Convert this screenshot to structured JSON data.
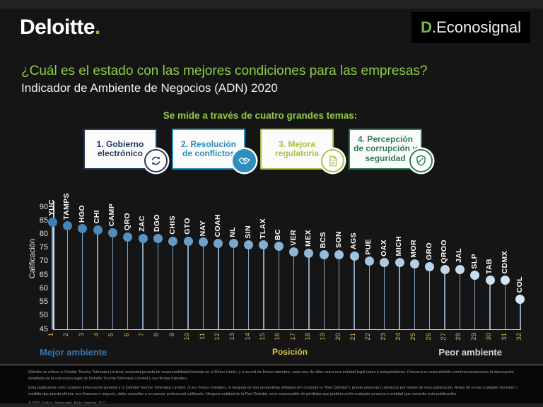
{
  "header": {
    "brand": "Deloitte",
    "brand_dot": ".",
    "brand_dot_color": "#86bc25",
    "logo_right_d": "D",
    "logo_right_rest": ".Econosignal"
  },
  "title": "¿Cuál es el estado con las mejores condiciones para las empresas?",
  "subtitle": "Indicador de Ambiente de Negocios (ADN) 2020",
  "themes_intro": "Se mide a través de cuatro grandes temas:",
  "themes": [
    {
      "label": "1. Gobierno electrónico",
      "color": "#223a5e",
      "icon": "sync-arrows-icon",
      "icon_filled": false
    },
    {
      "label": "2. Resolución de conflictos",
      "color": "#2e8fbf",
      "icon": "handshake-icon",
      "icon_filled": true
    },
    {
      "label": "3. Mejora regulatoria",
      "color": "#a8c24b",
      "icon": "document-icon",
      "icon_filled": false
    },
    {
      "label": "4. Percepción de corrupción y seguridad",
      "color": "#2e7d4f",
      "icon": "shield-icon",
      "icon_filled": false
    }
  ],
  "chart_data": {
    "type": "scatter",
    "subtype": "lollipop",
    "xlabel": "Posición",
    "ylabel": "Calificación",
    "ylim": [
      45,
      90
    ],
    "ytick_step": 5,
    "xlim": [
      1,
      32
    ],
    "grid": false,
    "x": [
      1,
      2,
      3,
      4,
      5,
      6,
      7,
      8,
      9,
      10,
      11,
      12,
      13,
      14,
      15,
      16,
      17,
      18,
      19,
      20,
      21,
      22,
      23,
      24,
      25,
      26,
      27,
      28,
      29,
      30,
      31,
      32
    ],
    "categories": [
      "YUC",
      "TAMPS",
      "HGO",
      "CHI",
      "CAMP",
      "QRO",
      "ZAC",
      "DGO",
      "CHIS",
      "GTO",
      "NAY",
      "COAH",
      "NL",
      "SIN",
      "TLAX",
      "BC",
      "VER",
      "MEX",
      "BCS",
      "SON",
      "AGS",
      "PUE",
      "OAX",
      "MICH",
      "MOR",
      "GRO",
      "QROO",
      "JAL",
      "SLP",
      "TAB",
      "CDMX",
      "COL"
    ],
    "values": [
      84.5,
      83,
      82,
      81.5,
      80.5,
      79,
      78.5,
      78.5,
      77.5,
      77.5,
      77,
      76.5,
      76.5,
      76,
      76,
      75.5,
      73.5,
      73,
      72.5,
      72.5,
      72,
      70,
      69.5,
      69.5,
      69,
      68,
      67,
      67,
      65,
      63,
      63,
      56
    ],
    "dot_color_start": "#3d7fb5",
    "dot_color_end": "#d6e8f7",
    "annotations": {
      "left": "Mejor ambiente",
      "right": "Peor ambiente"
    }
  },
  "footer": {
    "disclaimer1": "Deloitte se refiere a Deloitte Touche Tohmatsu Limited, sociedad privada de responsabilidad limitada en el Reino Unido, y a su red de firmas miembro, cada una de ellas como una entidad legal única e independiente. Conozca en www.deloitte.com/mx/conozcanos la descripción detallada de la estructura legal de Deloitte Touche Tohmatsu Limited y sus firmas miembro.",
    "disclaimer2": "Esta publicación solo contiene información general y ni Deloitte Touche Tohmatsu Limited, ni sus firmas miembro, ni ninguna de sus respectivas afiliadas (en conjunto la \"Red Deloitte\"), presta asesoría o servicios por medio de esta publicación. Antes de tomar cualquier decisión o medida que pueda afectar sus finanzas o negocio, debe consultar a un asesor profesional calificado. Ninguna entidad de la Red Deloitte, será responsable de pérdidas que pudiera sufrir cualquier persona o entidad que consulte esta publicación.",
    "copyright": "© 2021 Galaz, Yamazaki, Ruiz Urquiza, S.C."
  }
}
